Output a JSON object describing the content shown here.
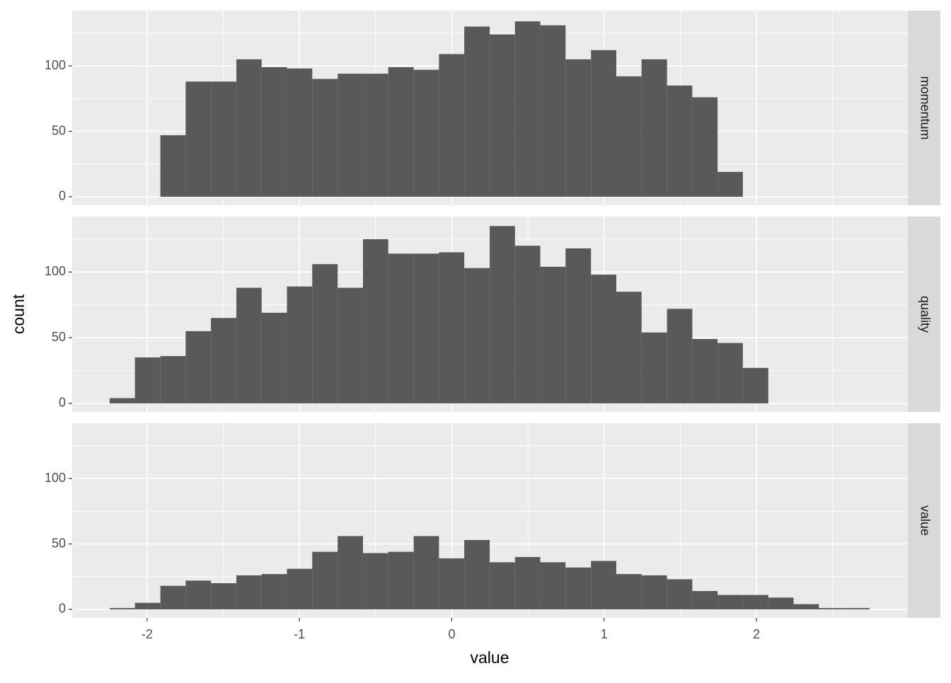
{
  "chart_data": {
    "type": "histogram",
    "x_label": "value",
    "y_label": "count",
    "bins": [
      -2.246,
      -2.08,
      -1.913,
      -1.747,
      -1.581,
      -1.414,
      -1.248,
      -1.082,
      -0.916,
      -0.749,
      -0.583,
      -0.417,
      -0.25,
      -0.084,
      0.082,
      0.249,
      0.415,
      0.581,
      0.747,
      0.914,
      1.08,
      1.246,
      1.413,
      1.579,
      1.745,
      1.911,
      2.078,
      2.244,
      2.41,
      2.577,
      2.743
    ],
    "facets": [
      {
        "name": "momentum",
        "values": [
          0,
          0,
          47,
          88,
          88,
          105,
          99,
          98,
          90,
          94,
          94,
          99,
          97,
          109,
          130,
          124,
          134,
          131,
          105,
          112,
          92,
          105,
          85,
          76,
          19,
          0,
          0,
          0,
          0,
          0
        ]
      },
      {
        "name": "quality",
        "values": [
          4,
          35,
          36,
          55,
          65,
          88,
          69,
          89,
          106,
          88,
          125,
          114,
          114,
          115,
          103,
          135,
          120,
          104,
          118,
          98,
          85,
          54,
          72,
          49,
          46,
          27,
          0,
          0,
          0,
          0
        ]
      },
      {
        "name": "value",
        "values": [
          1,
          5,
          18,
          22,
          20,
          26,
          27,
          31,
          44,
          56,
          43,
          44,
          56,
          39,
          53,
          36,
          40,
          36,
          32,
          37,
          27,
          26,
          23,
          14,
          11,
          11,
          9,
          4,
          1,
          1
        ]
      }
    ],
    "color": "#595959",
    "xlim": [
      -2.492,
      2.994
    ],
    "xticks": [
      -2,
      -1,
      0,
      1,
      2
    ],
    "minor_xticks": [
      -1.5,
      -0.5,
      0.5,
      1.5,
      2.5
    ],
    "ylim": [
      -6.5,
      142.2
    ],
    "yticks": [
      0,
      50,
      100
    ],
    "minor_yticks": [
      25,
      75,
      125
    ],
    "grid": true
  }
}
